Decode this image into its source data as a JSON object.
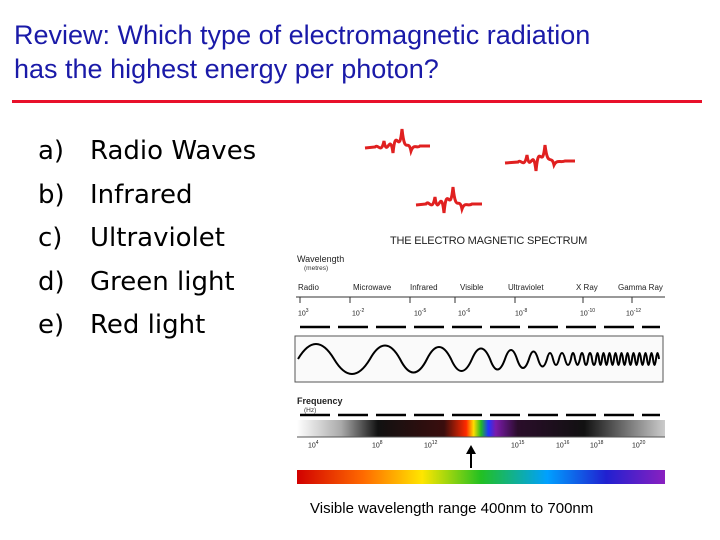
{
  "slide": {
    "title_line1": "Review: Which type of electromagnetic radiation",
    "title_line2": "has the highest energy per photon?",
    "options": [
      {
        "letter": "a)",
        "text": "Radio Waves"
      },
      {
        "letter": "b)",
        "text": "Infrared"
      },
      {
        "letter": "c)",
        "text": "Ultraviolet"
      },
      {
        "letter": "d)",
        "text": "Green light"
      },
      {
        "letter": "e)",
        "text": "Red light"
      }
    ],
    "caption": "Visible wavelength range 400nm to 700nm"
  },
  "spectrum": {
    "title": "THE ELECTRO MAGNETIC SPECTRUM",
    "wavelength_label": "Wavelength",
    "wavelength_units": "(metres)",
    "bands": [
      "Radio",
      "Microwave",
      "Infrared",
      "Visible",
      "Ultraviolet",
      "X Ray",
      "Gamma Ray"
    ],
    "wavelength_ticks": [
      {
        "base": "10",
        "exp": "3"
      },
      {
        "base": "10",
        "exp": "-2"
      },
      {
        "base": "10",
        "exp": "-5"
      },
      {
        "base": "10",
        "exp": "-6"
      },
      {
        "base": "10",
        "exp": "-8"
      },
      {
        "base": "10",
        "exp": "-10"
      },
      {
        "base": "10",
        "exp": "-12"
      }
    ],
    "frequency_label": "Frequency",
    "frequency_units": "(Hz)",
    "frequency_ticks": [
      {
        "base": "10",
        "exp": "4"
      },
      {
        "base": "10",
        "exp": "8"
      },
      {
        "base": "10",
        "exp": "12"
      },
      {
        "base": "10",
        "exp": "15"
      },
      {
        "base": "10",
        "exp": "16"
      },
      {
        "base": "10",
        "exp": "18"
      },
      {
        "base": "10",
        "exp": "20"
      }
    ],
    "colors": {
      "wave_red": "#e02020",
      "title_blue": "#1a1aa8",
      "rule_red": "#e8102a"
    }
  }
}
